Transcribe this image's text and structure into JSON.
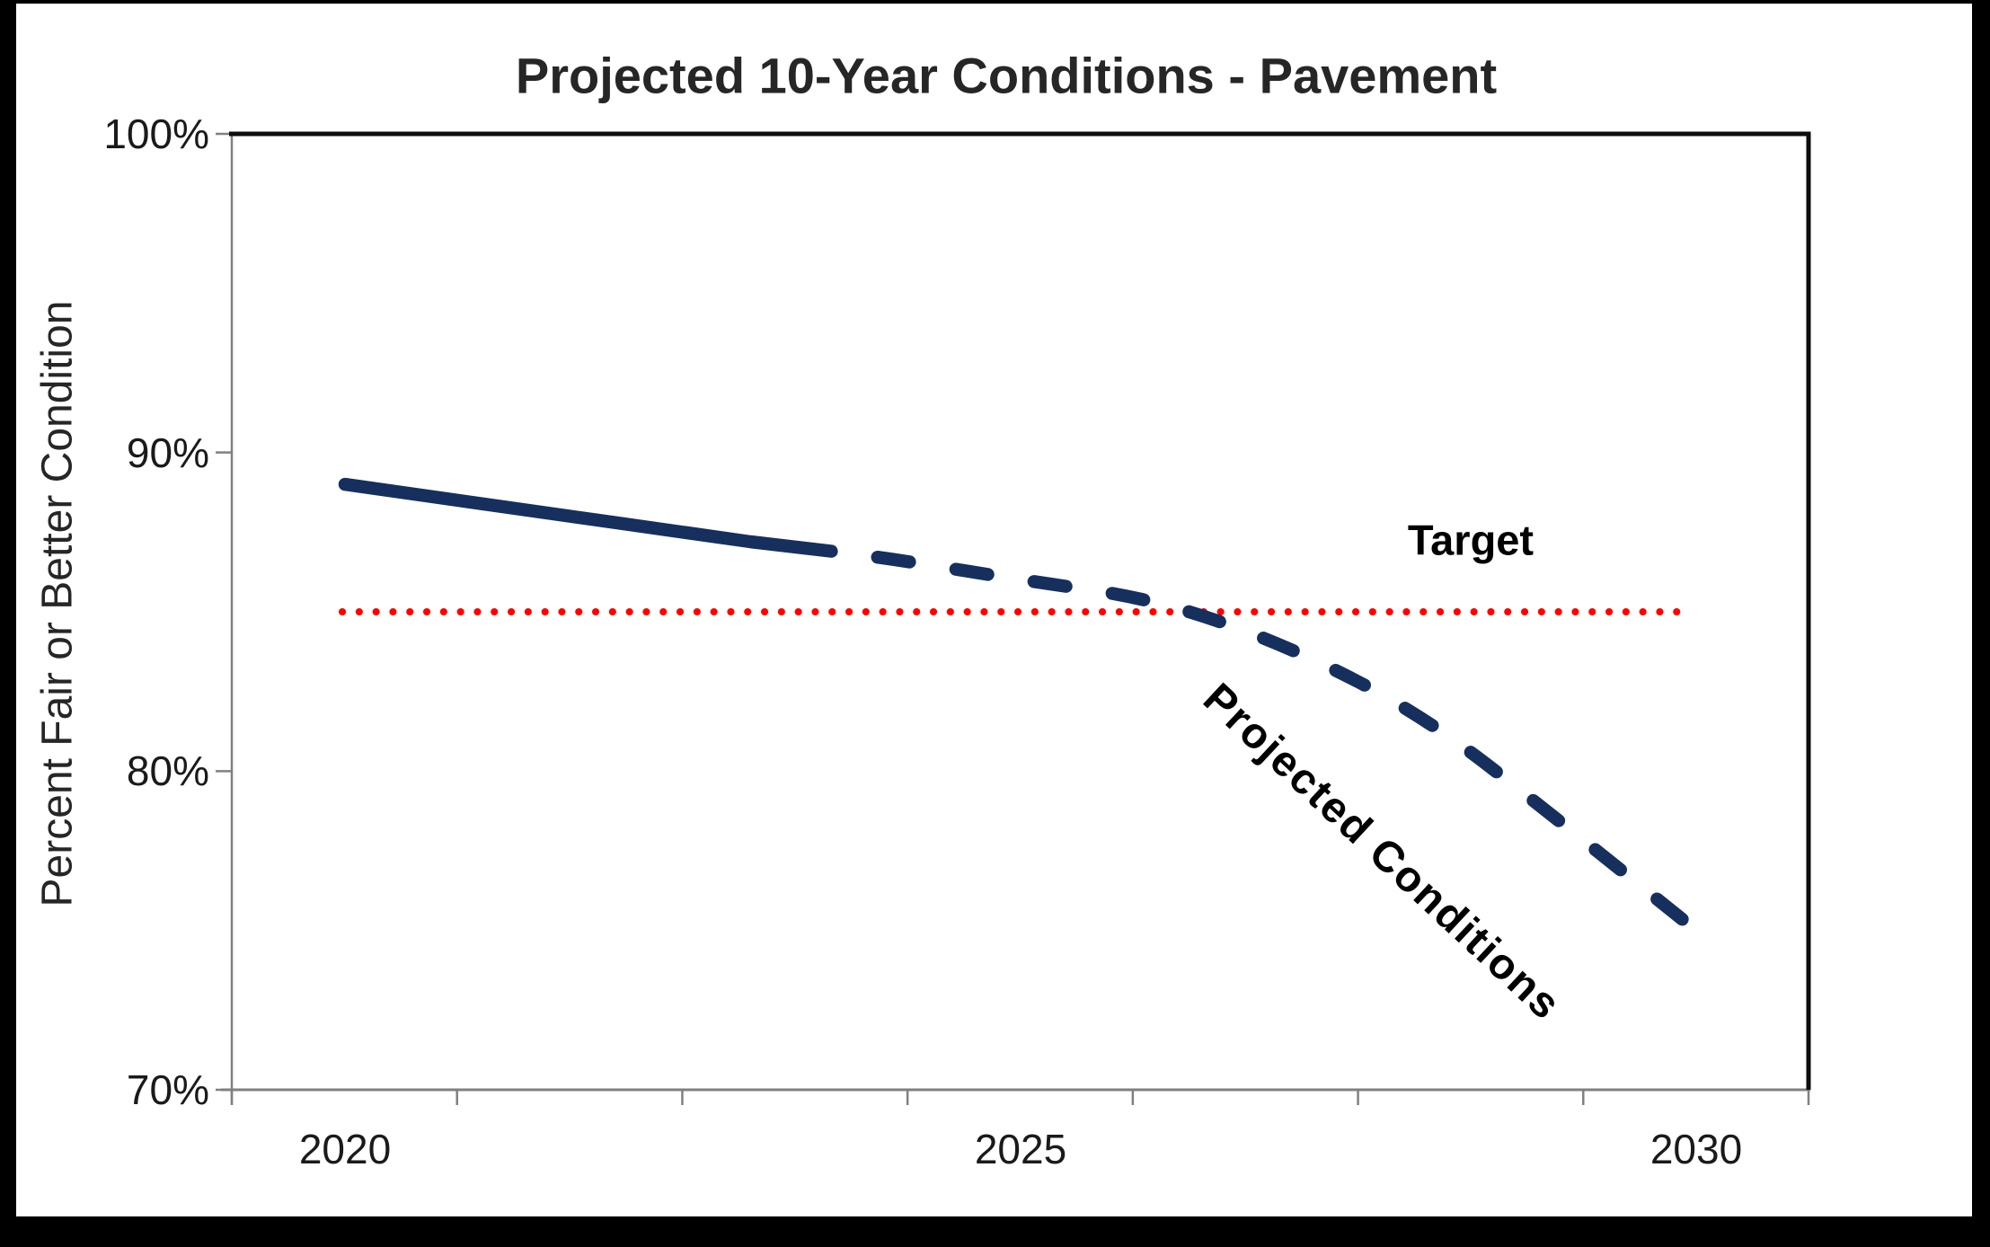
{
  "frame": {
    "page_background": "#000000",
    "canvas_background": "#ffffff"
  },
  "chart_data": {
    "type": "line",
    "title": "Projected 10-Year Conditions - Pavement",
    "xlabel": "",
    "ylabel": "Percent Fair or Better Condition",
    "x_range": [
      2020,
      2030
    ],
    "ylim": [
      70,
      100
    ],
    "grid": false,
    "legend_position": "none",
    "y_tick_percents": [
      100,
      90,
      80,
      70
    ],
    "y_tick_labels": [
      "100%",
      "90%",
      "80%",
      "70%"
    ],
    "x_tick_years": [
      2020,
      2025,
      2030
    ],
    "x_tick_labels": [
      "2020",
      "2025",
      "2030"
    ],
    "x_boundary_tick_count": 8,
    "axis_color": "#808080",
    "border_color": "#0d0d0d",
    "series": [
      {
        "name": "Projected Conditions",
        "color": "#172f5d",
        "line_style": "solid_then_dashed",
        "solid_through_year": 2023.6,
        "x": [
          2020,
          2021,
          2022,
          2023,
          2024,
          2025,
          2026,
          2027,
          2028,
          2029,
          2030
        ],
        "y": [
          89.0,
          88.4,
          87.8,
          87.2,
          86.7,
          86.0,
          85.4,
          83.9,
          81.7,
          78.4,
          75.0
        ]
      },
      {
        "name": "Target",
        "color": "#ff0000",
        "line_style": "dotted",
        "value": 85,
        "x_span_years": [
          2020,
          2030
        ]
      }
    ],
    "annotations": [
      {
        "text": "Target",
        "color": "#000000",
        "rotation_deg": 0
      },
      {
        "text": "Projected Conditions",
        "color": "#000000",
        "rotation_deg": 43
      }
    ]
  }
}
